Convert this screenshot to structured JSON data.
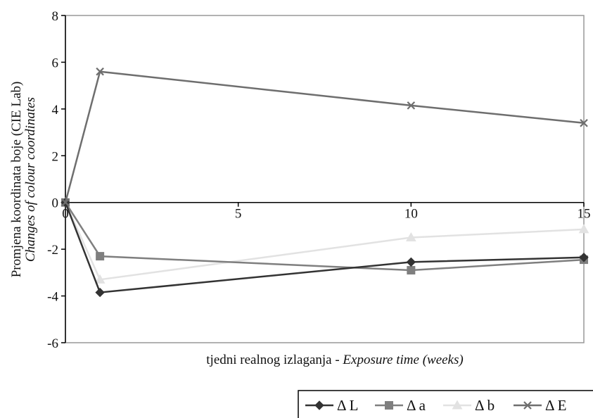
{
  "chart_data": {
    "type": "line",
    "title": "",
    "xlabel": "tjedni realnog izlaganja - ",
    "xlabel_italic": "Exposure time (weeks)",
    "ylabel": "Promjena koordinata boje (CIE Lab)",
    "ylabel_italic": "Changes of colour coordinates",
    "xlim": [
      0,
      15
    ],
    "ylim": [
      -6,
      8
    ],
    "x_ticks": [
      0,
      5,
      10,
      15
    ],
    "y_ticks": [
      -6,
      -4,
      -2,
      0,
      2,
      4,
      6,
      8
    ],
    "x_tick_labels": [
      "0",
      "5",
      "10",
      "15"
    ],
    "y_tick_labels": [
      "-6",
      "-4",
      "-2",
      "0",
      "2",
      "4",
      "6",
      "8"
    ],
    "grid": false,
    "legend_position": "bottom-right",
    "series": [
      {
        "name": "Δ L",
        "color": "#333333",
        "marker": "diamond",
        "x": [
          0,
          1,
          10,
          15
        ],
        "y": [
          0,
          -3.85,
          -2.55,
          -2.35
        ]
      },
      {
        "name": "Δ a",
        "color": "#7f7f7f",
        "marker": "square",
        "x": [
          0,
          1,
          10,
          15
        ],
        "y": [
          0,
          -2.3,
          -2.9,
          -2.45
        ]
      },
      {
        "name": "Δ b",
        "color": "#e2e2e2",
        "marker": "triangle",
        "x": [
          0,
          1,
          10,
          15
        ],
        "y": [
          0,
          -3.3,
          -1.5,
          -1.15
        ]
      },
      {
        "name": "Δ E",
        "color": "#6e6e6e",
        "marker": "x",
        "x": [
          0,
          1,
          10,
          15
        ],
        "y": [
          0,
          5.6,
          4.15,
          3.4
        ]
      }
    ]
  }
}
